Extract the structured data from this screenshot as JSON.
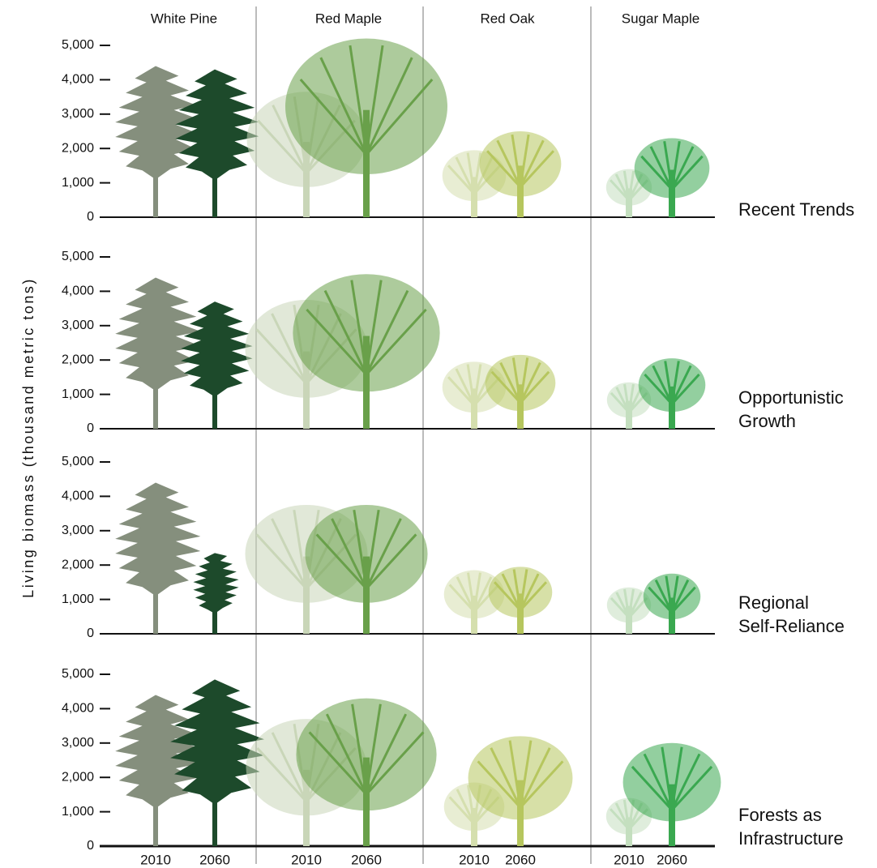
{
  "chart_data": {
    "type": "tree",
    "y_label": "Living biomass (thousand metric tons)",
    "groups": [
      "White Pine",
      "Red Maple",
      "Red Oak",
      "Sugar Maple"
    ],
    "categories": [
      "2010",
      "2060"
    ],
    "colors": [
      [
        "#858f7d",
        "#1d4a2b"
      ],
      [
        "#c9d6b8",
        "#69a04a"
      ],
      [
        "#d5dfae",
        "#b6c65e"
      ],
      [
        "#c4dfbf",
        "#3aa850"
      ]
    ],
    "ylim": [
      0,
      5000
    ],
    "yticks": [
      0,
      {
        "value": 1000,
        "label": "1,000"
      },
      {
        "value": 2000,
        "label": "2,000"
      },
      {
        "value": 3000,
        "label": "3,000"
      },
      {
        "value": 4000,
        "label": "4,000"
      },
      {
        "value": 5000,
        "label": "5,000"
      }
    ],
    "panels": [
      {
        "name": "Recent Trends",
        "color": "#1d5a8a",
        "values": [
          [
            4400,
            4300
          ],
          [
            3650,
            5200
          ],
          [
            1950,
            2500
          ],
          [
            1400,
            2300
          ]
        ]
      },
      {
        "name": "Opportunistic Growth",
        "color": "#e05a2a",
        "values": [
          [
            4400,
            3700
          ],
          [
            3750,
            4500
          ],
          [
            1950,
            2150
          ],
          [
            1350,
            2050
          ]
        ]
      },
      {
        "name": "Regional Self-Reliance",
        "color": "#f0b800",
        "values": [
          [
            4400,
            2350
          ],
          [
            3750,
            3750
          ],
          [
            1850,
            1950
          ],
          [
            1350,
            1750
          ]
        ]
      },
      {
        "name": "Forests as Infrastructure",
        "color": "#4e8a3c",
        "values": [
          [
            4400,
            4850
          ],
          [
            3700,
            4300
          ],
          [
            1850,
            3200
          ],
          [
            1400,
            3000
          ]
        ]
      }
    ]
  }
}
